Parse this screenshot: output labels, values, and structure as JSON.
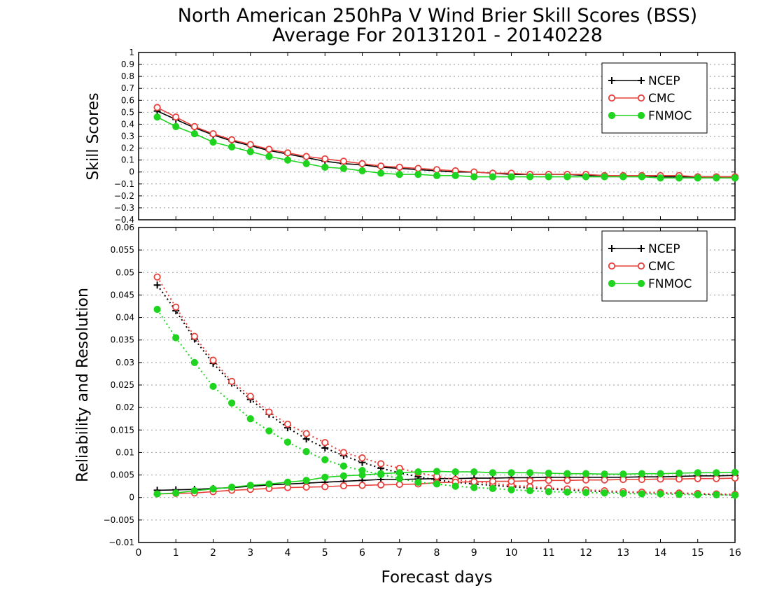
{
  "title": "North American 250hPa V Wind Brier Skill Scores (BSS)",
  "subtitle": "Average For 20131201 - 20140228",
  "xlabel": "Forecast days",
  "colors": {
    "NCEP": "#000000",
    "CMC": "#e8413c",
    "FNMOC": "#1ed41e",
    "grid": "#9a9a9a"
  },
  "chart_data": [
    {
      "type": "line",
      "ylabel": "Skill Scores",
      "xlim": [
        0,
        16
      ],
      "ylim": [
        -0.4,
        1
      ],
      "xticks": [
        0,
        1,
        2,
        3,
        4,
        5,
        6,
        7,
        8,
        9,
        10,
        11,
        12,
        13,
        14,
        15,
        16
      ],
      "yticks": [
        -0.4,
        -0.3,
        -0.2,
        -0.1,
        0,
        0.1,
        0.2,
        0.3,
        0.4,
        0.5,
        0.6,
        0.7,
        0.8,
        0.9,
        1
      ],
      "ytick_labels": [
        "−0.4",
        "−0.3",
        "−0.2",
        "−0.1",
        "0",
        "0.1",
        "0.2",
        "0.3",
        "0.4",
        "0.5",
        "0.6",
        "0.7",
        "0.8",
        "0.9",
        "1"
      ],
      "grid": true,
      "legend": {
        "placement": "top-right",
        "entries": [
          "NCEP",
          "CMC",
          "FNMOC"
        ]
      },
      "x": [
        0.5,
        1,
        1.5,
        2,
        2.5,
        3,
        3.5,
        4,
        4.5,
        5,
        5.5,
        6,
        6.5,
        7,
        7.5,
        8,
        8.5,
        9,
        9.5,
        10,
        10.5,
        11,
        11.5,
        12,
        12.5,
        13,
        13.5,
        14,
        14.5,
        15,
        15.5,
        16
      ],
      "series": [
        {
          "name": "NCEP",
          "marker": "plus",
          "values": [
            0.51,
            0.44,
            0.37,
            0.31,
            0.26,
            0.22,
            0.18,
            0.15,
            0.12,
            0.09,
            0.07,
            0.06,
            0.04,
            0.03,
            0.02,
            0.01,
            0.0,
            0.0,
            -0.01,
            -0.02,
            -0.02,
            -0.02,
            -0.02,
            -0.03,
            -0.03,
            -0.03,
            -0.03,
            -0.04,
            -0.04,
            -0.04,
            -0.04,
            -0.04
          ]
        },
        {
          "name": "CMC",
          "marker": "open-circle",
          "values": [
            0.54,
            0.46,
            0.38,
            0.32,
            0.27,
            0.23,
            0.19,
            0.16,
            0.13,
            0.11,
            0.09,
            0.07,
            0.05,
            0.04,
            0.03,
            0.02,
            0.01,
            0.0,
            -0.01,
            -0.01,
            -0.02,
            -0.02,
            -0.02,
            -0.02,
            -0.03,
            -0.03,
            -0.03,
            -0.03,
            -0.03,
            -0.04,
            -0.04,
            -0.04
          ]
        },
        {
          "name": "FNMOC",
          "marker": "filled-circle",
          "values": [
            0.46,
            0.38,
            0.32,
            0.25,
            0.21,
            0.17,
            0.13,
            0.1,
            0.07,
            0.04,
            0.03,
            0.01,
            -0.01,
            -0.02,
            -0.02,
            -0.03,
            -0.03,
            -0.04,
            -0.04,
            -0.04,
            -0.04,
            -0.04,
            -0.04,
            -0.04,
            -0.04,
            -0.04,
            -0.04,
            -0.05,
            -0.05,
            -0.05,
            -0.05,
            -0.05
          ]
        }
      ]
    },
    {
      "type": "line",
      "ylabel": "Reliability and Resolution",
      "xlim": [
        0,
        16
      ],
      "ylim": [
        -0.01,
        0.06
      ],
      "xticks": [
        0,
        1,
        2,
        3,
        4,
        5,
        6,
        7,
        8,
        9,
        10,
        11,
        12,
        13,
        14,
        15,
        16
      ],
      "xtick_labels": [
        "0",
        "1",
        "2",
        "3",
        "4",
        "5",
        "6",
        "7",
        "8",
        "9",
        "10",
        "11",
        "12",
        "13",
        "14",
        "15",
        "16"
      ],
      "yticks": [
        -0.01,
        -0.005,
        0,
        0.005,
        0.01,
        0.015,
        0.02,
        0.025,
        0.03,
        0.035,
        0.04,
        0.045,
        0.05,
        0.055,
        0.06
      ],
      "ytick_labels": [
        "−0.01",
        "−0.005",
        "0",
        "0.005",
        "0.01",
        "0.015",
        "0.02",
        "0.025",
        "0.03",
        "0.035",
        "0.04",
        "0.045",
        "0.05",
        "0.055",
        "0.06"
      ],
      "grid": true,
      "legend": {
        "placement": "top-right",
        "entries": [
          "NCEP",
          "CMC",
          "FNMOC"
        ]
      },
      "x": [
        0.5,
        1,
        1.5,
        2,
        2.5,
        3,
        3.5,
        4,
        4.5,
        5,
        5.5,
        6,
        6.5,
        7,
        7.5,
        8,
        8.5,
        9,
        9.5,
        10,
        10.5,
        11,
        11.5,
        12,
        12.5,
        13,
        13.5,
        14,
        14.5,
        15,
        15.5,
        16
      ],
      "series": [
        {
          "name": "NCEP",
          "marker": "plus",
          "line": "dotted",
          "values": [
            0.0472,
            0.0415,
            0.0352,
            0.0298,
            0.0254,
            0.0218,
            0.0185,
            0.0155,
            0.013,
            0.011,
            0.0093,
            0.0078,
            0.0065,
            0.0055,
            0.0046,
            0.0039,
            0.0034,
            0.003,
            0.0027,
            0.0024,
            0.0021,
            0.0019,
            0.0017,
            0.0015,
            0.0013,
            0.0012,
            0.0011,
            0.001,
            0.0009,
            0.0008,
            0.0007,
            0.0006
          ]
        },
        {
          "name": "NCEP",
          "marker": "plus",
          "line": "solid",
          "values": [
            0.0016,
            0.0017,
            0.0018,
            0.002,
            0.0022,
            0.0025,
            0.0028,
            0.003,
            0.0032,
            0.0034,
            0.0036,
            0.0038,
            0.004,
            0.004,
            0.0041,
            0.0042,
            0.0042,
            0.0043,
            0.0043,
            0.0044,
            0.0044,
            0.0045,
            0.0045,
            0.0045,
            0.0045,
            0.0045,
            0.0046,
            0.0046,
            0.0047,
            0.0048,
            0.0048,
            0.0049
          ]
        },
        {
          "name": "CMC",
          "marker": "open-circle",
          "line": "dotted",
          "values": [
            0.049,
            0.0423,
            0.0358,
            0.0305,
            0.0258,
            0.0225,
            0.019,
            0.0163,
            0.0142,
            0.0122,
            0.01,
            0.0088,
            0.0075,
            0.0065,
            0.0055,
            0.0047,
            0.004,
            0.0035,
            0.0031,
            0.0027,
            0.0024,
            0.0021,
            0.0019,
            0.0017,
            0.0015,
            0.0013,
            0.0012,
            0.0011,
            0.001,
            0.0009,
            0.0008,
            0.0007
          ]
        },
        {
          "name": "CMC",
          "marker": "open-circle",
          "line": "solid",
          "values": [
            0.0008,
            0.0009,
            0.001,
            0.0013,
            0.0016,
            0.0018,
            0.002,
            0.0022,
            0.0023,
            0.0024,
            0.0026,
            0.0027,
            0.0028,
            0.0029,
            0.003,
            0.0033,
            0.0034,
            0.0035,
            0.0036,
            0.0036,
            0.0037,
            0.0038,
            0.0038,
            0.0039,
            0.0039,
            0.004,
            0.004,
            0.0041,
            0.0041,
            0.0042,
            0.0042,
            0.0043
          ]
        },
        {
          "name": "FNMOC",
          "marker": "filled-circle",
          "line": "dotted",
          "values": [
            0.0418,
            0.0355,
            0.03,
            0.0247,
            0.021,
            0.0175,
            0.0148,
            0.0123,
            0.0102,
            0.0084,
            0.007,
            0.006,
            0.0051,
            0.0042,
            0.0034,
            0.003,
            0.0025,
            0.0022,
            0.002,
            0.0017,
            0.0015,
            0.0013,
            0.0012,
            0.0011,
            0.001,
            0.0009,
            0.0008,
            0.0008,
            0.0007,
            0.0006,
            0.0006,
            0.0005
          ]
        },
        {
          "name": "FNMOC",
          "marker": "filled-circle",
          "line": "solid",
          "values": [
            0.0008,
            0.001,
            0.0015,
            0.0019,
            0.0023,
            0.0027,
            0.003,
            0.0034,
            0.0038,
            0.0045,
            0.0048,
            0.005,
            0.0053,
            0.0055,
            0.0057,
            0.0058,
            0.0057,
            0.0057,
            0.0055,
            0.0055,
            0.0055,
            0.0054,
            0.0053,
            0.0053,
            0.0052,
            0.0052,
            0.0053,
            0.0053,
            0.0054,
            0.0055,
            0.0055,
            0.0056
          ]
        }
      ]
    }
  ]
}
